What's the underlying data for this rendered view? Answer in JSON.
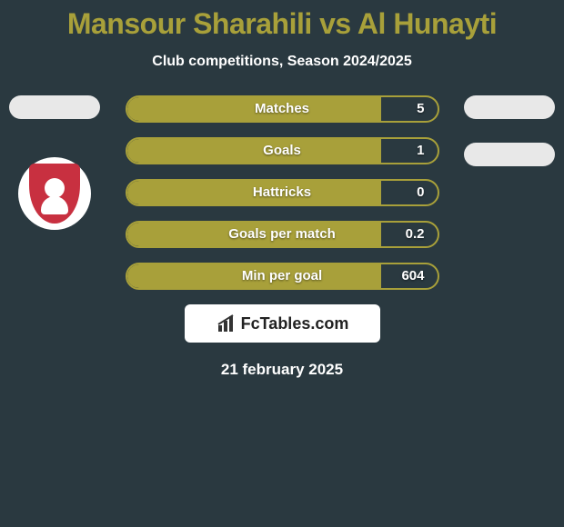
{
  "title": "Mansour Sharahili vs Al Hunayti",
  "subtitle": "Club competitions, Season 2024/2025",
  "date": "21 february 2025",
  "logo_text": "FcTables.com",
  "colors": {
    "background": "#2a3940",
    "accent": "#a8a03a",
    "text": "#ffffff",
    "badge_red": "#c83040"
  },
  "stats": [
    {
      "label": "Matches",
      "value": "5",
      "fill_pct": 82
    },
    {
      "label": "Goals",
      "value": "1",
      "fill_pct": 82
    },
    {
      "label": "Hattricks",
      "value": "0",
      "fill_pct": 82
    },
    {
      "label": "Goals per match",
      "value": "0.2",
      "fill_pct": 82
    },
    {
      "label": "Min per goal",
      "value": "604",
      "fill_pct": 82
    }
  ]
}
